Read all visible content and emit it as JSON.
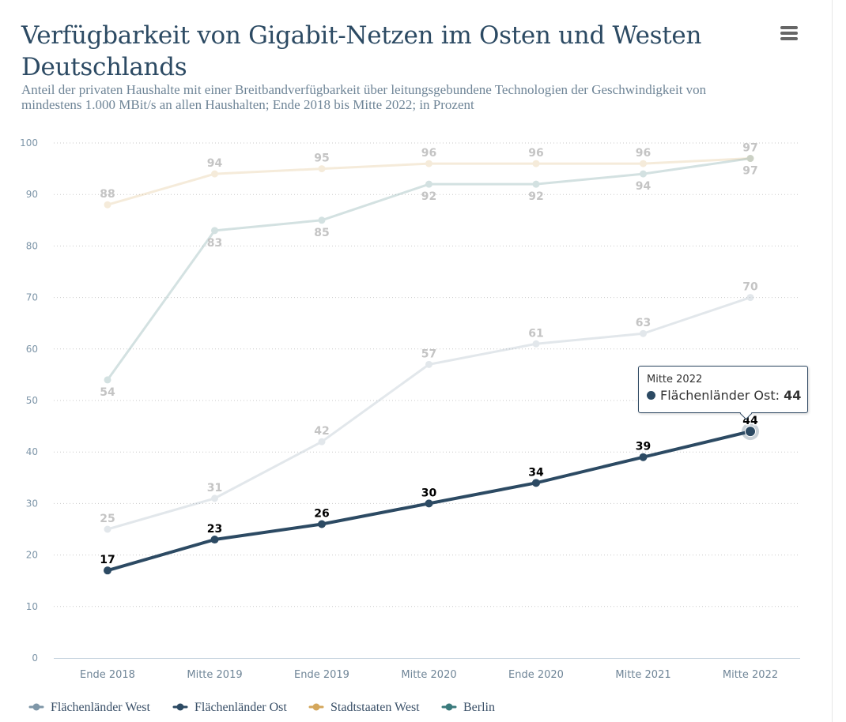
{
  "title": "Verfügbarkeit von Gigabit-Netzen im Osten und Westen Deutschlands",
  "subtitle": "Anteil der privaten Haushalte mit einer Breitbandverfügbarkeit über leitungsgebundene Technologien der Geschwindigkeit von mindestens 1.000 MBit/s an allen Haushalten; Ende 2018 bis Mitte 2022; in Prozent",
  "menu_icon": "hamburger-menu-icon",
  "chart_data": {
    "type": "line",
    "title": "Verfügbarkeit von Gigabit-Netzen im Osten und Westen Deutschlands",
    "subtitle": "Anteil der privaten Haushalte mit einer Breitbandverfügbarkeit über leitungsgebundene Technologien der Geschwindigkeit von mindestens 1.000 MBit/s an allen Haushalten; Ende 2018 bis Mitte 2022; in Prozent",
    "xlabel": "",
    "ylabel": "",
    "categories": [
      "Ende 2018",
      "Mitte 2019",
      "Ende 2019",
      "Mitte 2020",
      "Ende 2020",
      "Mitte 2021",
      "Mitte 2022"
    ],
    "ylim": [
      0,
      100
    ],
    "yticks": [
      0,
      10,
      20,
      30,
      40,
      50,
      60,
      70,
      80,
      90,
      100
    ],
    "grid": true,
    "legend_position": "bottom-left",
    "series": [
      {
        "name": "Flächenländer West",
        "color": "#7f97a8",
        "values": [
          25,
          31,
          42,
          57,
          61,
          63,
          70
        ],
        "label_position": "above",
        "highlighted": false
      },
      {
        "name": "Flächenländer Ost",
        "color": "#2c4a63",
        "values": [
          17,
          23,
          26,
          30,
          34,
          39,
          44
        ],
        "label_position": "above",
        "highlighted": true
      },
      {
        "name": "Stadtstaaten West",
        "color": "#d4a75c",
        "values": [
          88,
          94,
          95,
          96,
          96,
          96,
          97
        ],
        "label_position": "above",
        "highlighted": false
      },
      {
        "name": "Berlin",
        "color": "#3a7a7c",
        "values": [
          54,
          83,
          85,
          92,
          92,
          94,
          97
        ],
        "label_position": "below",
        "highlighted": false
      }
    ],
    "tooltip": {
      "header": "Mitte 2022",
      "series": "Flächenländer Ost",
      "value": "44"
    }
  }
}
